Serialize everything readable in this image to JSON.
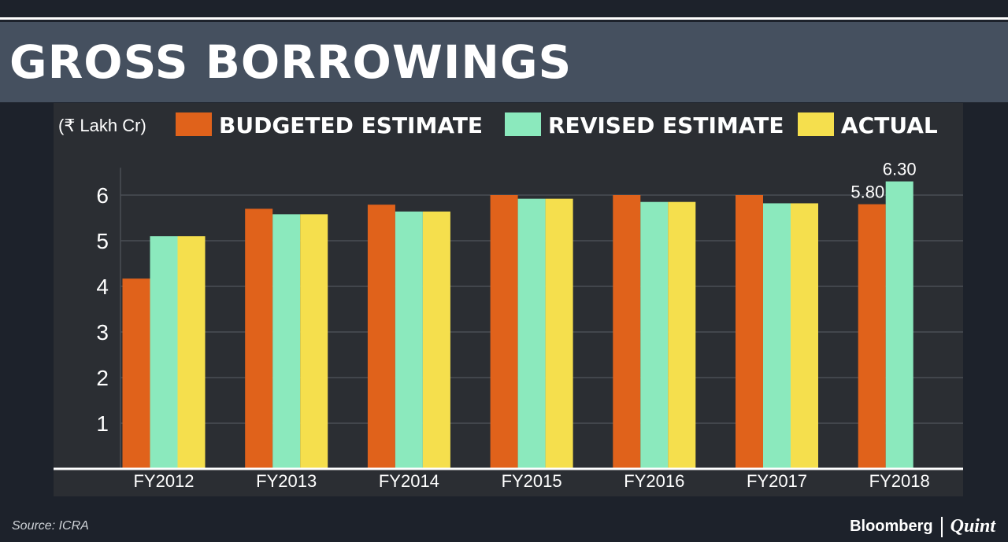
{
  "title": "GROSS BORROWINGS",
  "source": "Source: ICRA",
  "brand": {
    "primary": "Bloomberg",
    "secondary": "Quint"
  },
  "colors": {
    "background": "#1d222b",
    "title_band": "#45505f",
    "panel": "#2b2e33",
    "budgeted": "#e0621b",
    "revised": "#8be9bd",
    "actual": "#f5df4d",
    "text": "#ffffff"
  },
  "chart_data": {
    "type": "bar",
    "title": "GROSS BORROWINGS",
    "unit_label": "(₹ Lakh Cr)",
    "categories": [
      "FY2012",
      "FY2013",
      "FY2014",
      "FY2015",
      "FY2016",
      "FY2017",
      "FY2018"
    ],
    "series": [
      {
        "name": "BUDGETED ESTIMATE",
        "color": "#e0621b",
        "values": [
          4.17,
          5.7,
          5.79,
          6.0,
          6.0,
          6.0,
          5.8
        ]
      },
      {
        "name": "REVISED ESTIMATE",
        "color": "#8be9bd",
        "values": [
          5.1,
          5.58,
          5.64,
          5.92,
          5.85,
          5.82,
          6.3
        ]
      },
      {
        "name": "ACTUAL",
        "color": "#f5df4d",
        "values": [
          5.1,
          5.58,
          5.64,
          5.92,
          5.85,
          5.82,
          null
        ]
      }
    ],
    "data_labels": [
      {
        "series": 0,
        "category": 6,
        "text": "5.80"
      },
      {
        "series": 1,
        "category": 6,
        "text": "6.30"
      }
    ],
    "yticks": [
      1,
      2,
      3,
      4,
      5,
      6
    ],
    "ylim": [
      0,
      6.6
    ],
    "grid": true,
    "legend": "top"
  }
}
